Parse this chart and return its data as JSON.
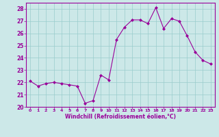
{
  "x": [
    0,
    1,
    2,
    3,
    4,
    5,
    6,
    7,
    8,
    9,
    10,
    11,
    12,
    13,
    14,
    15,
    16,
    17,
    18,
    19,
    20,
    21,
    22,
    23
  ],
  "y": [
    22.1,
    21.7,
    21.9,
    22.0,
    21.9,
    21.8,
    21.7,
    20.3,
    20.5,
    22.6,
    22.2,
    25.5,
    26.5,
    27.1,
    27.1,
    26.8,
    28.1,
    26.4,
    27.2,
    27.0,
    25.8,
    24.5,
    23.8,
    23.5
  ],
  "line_color": "#990099",
  "marker": "D",
  "marker_size": 2,
  "bg_color": "#cce8e8",
  "grid_color": "#99cccc",
  "xlabel": "Windchill (Refroidissement éolien,°C)",
  "xlabel_color": "#990099",
  "tick_color": "#990099",
  "ylim": [
    20,
    28.5
  ],
  "xlim": [
    -0.5,
    23.5
  ],
  "yticks": [
    20,
    21,
    22,
    23,
    24,
    25,
    26,
    27,
    28
  ],
  "xticks": [
    0,
    1,
    2,
    3,
    4,
    5,
    6,
    7,
    8,
    9,
    10,
    11,
    12,
    13,
    14,
    15,
    16,
    17,
    18,
    19,
    20,
    21,
    22,
    23
  ],
  "spine_color": "#990099",
  "figsize": [
    3.2,
    2.0
  ],
  "dpi": 100
}
